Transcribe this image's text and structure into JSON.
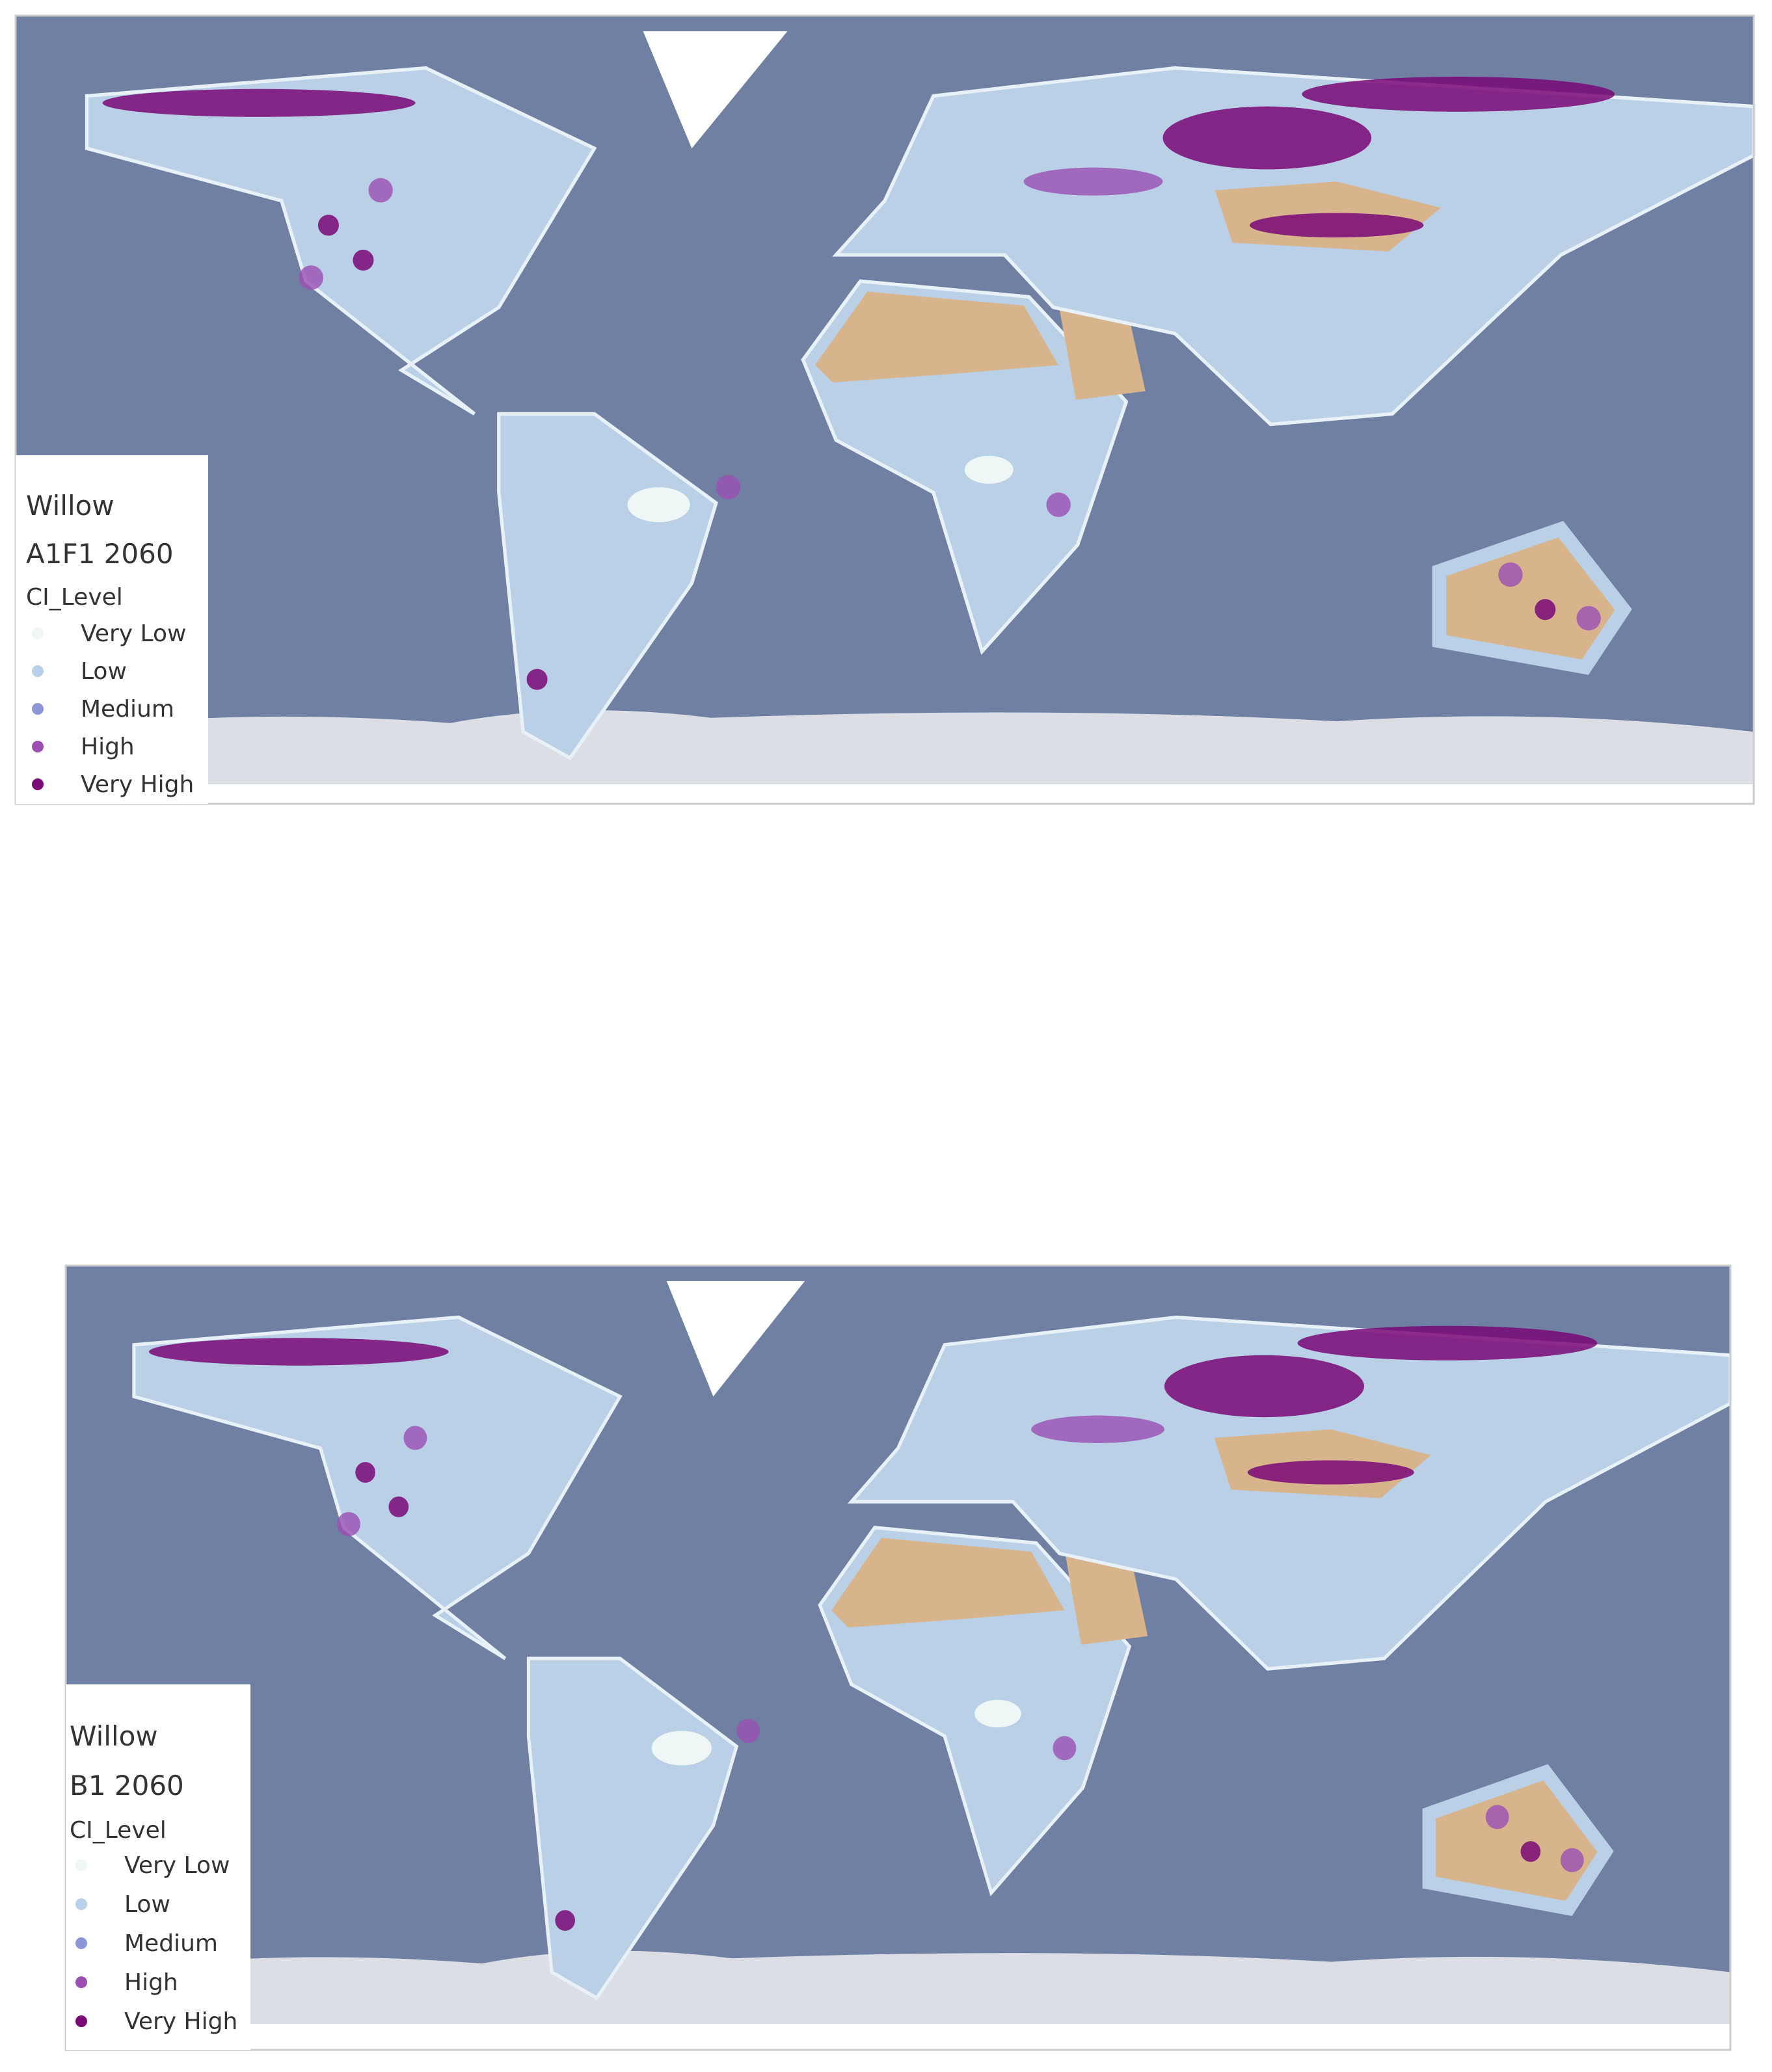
{
  "maps": [
    {
      "title": "Willow",
      "scenario": "A1F1 2060",
      "legend": {
        "title": "CI_Level",
        "items": [
          {
            "label": "Very Low",
            "color": "#eef6f6"
          },
          {
            "label": "Low",
            "color": "#b6d1e8"
          },
          {
            "label": "Medium",
            "color": "#8c96d4"
          },
          {
            "label": "High",
            "color": "#9b4fb3"
          },
          {
            "label": "Very High",
            "color": "#7a0877"
          }
        ]
      }
    },
    {
      "title": "Willow",
      "scenario": "B1 2060",
      "legend": {
        "title": "CI_Level",
        "items": [
          {
            "label": "Very Low",
            "color": "#eef6f6"
          },
          {
            "label": "Low",
            "color": "#b6d1e8"
          },
          {
            "label": "Medium",
            "color": "#8c96d4"
          },
          {
            "label": "High",
            "color": "#9b4fb3"
          },
          {
            "label": "Very High",
            "color": "#7a0877"
          }
        ]
      }
    }
  ]
}
